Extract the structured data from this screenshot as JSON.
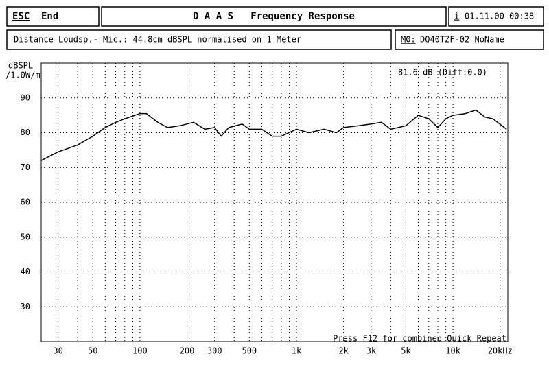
{
  "header": {
    "esc": "ESC",
    "end": "End",
    "title": "D A A S   Frequency Response",
    "info": "i",
    "datetime": "01.11.00 00:38",
    "distance": "Distance Loudsp.- Mic.: 44.8cm dBSPL normalised on 1 Meter",
    "m0": "M0:",
    "device": "DQ40TZF-02 NoName"
  },
  "chart_data": {
    "type": "line",
    "ylabel_1": "dBSPL",
    "ylabel_2": "/1.0W/m",
    "annotation": "81.6 dB (Diff:0.0)",
    "footer": "Press F12 for combined Quick Repeat",
    "xlog": true,
    "xlim": [
      23.4,
      22400
    ],
    "ylim": [
      20,
      100
    ],
    "xticks": [
      30,
      50,
      100,
      200,
      300,
      500,
      {
        "value": 1000,
        "label": "1k"
      },
      {
        "value": 2000,
        "label": "2k"
      },
      {
        "value": 3000,
        "label": "3k"
      },
      {
        "value": 5000,
        "label": "5k"
      },
      {
        "value": 10000,
        "label": "10k"
      },
      {
        "value": 20000,
        "label": "20kHz"
      }
    ],
    "x_minor_grid": [
      40,
      60,
      70,
      80,
      90,
      400,
      600,
      700,
      800,
      900,
      4000,
      6000,
      7000,
      8000,
      9000
    ],
    "yticks": [
      30,
      40,
      50,
      60,
      70,
      80,
      90
    ],
    "grid": true,
    "series": [
      {
        "color": "#000000",
        "x": [
          23.4,
          30,
          40,
          50,
          60,
          70,
          80,
          100,
          110,
          130,
          150,
          180,
          220,
          260,
          300,
          330,
          370,
          450,
          500,
          600,
          700,
          800,
          1000,
          1200,
          1500,
          1800,
          2000,
          2500,
          3000,
          3500,
          4000,
          5000,
          6000,
          7000,
          8000,
          9000,
          10000,
          12000,
          14000,
          16000,
          18000,
          22000
        ],
        "values": [
          72,
          74.5,
          76.5,
          79,
          81.5,
          83,
          84,
          85.5,
          85.5,
          83,
          81.5,
          82,
          83,
          81,
          81.5,
          79,
          81.5,
          82.5,
          81,
          81,
          79,
          79,
          81,
          80,
          81,
          80,
          81.5,
          82,
          82.5,
          83,
          81,
          82,
          85,
          84,
          81.5,
          84,
          85,
          85.5,
          86.5,
          84.5,
          84,
          81
        ]
      }
    ]
  }
}
